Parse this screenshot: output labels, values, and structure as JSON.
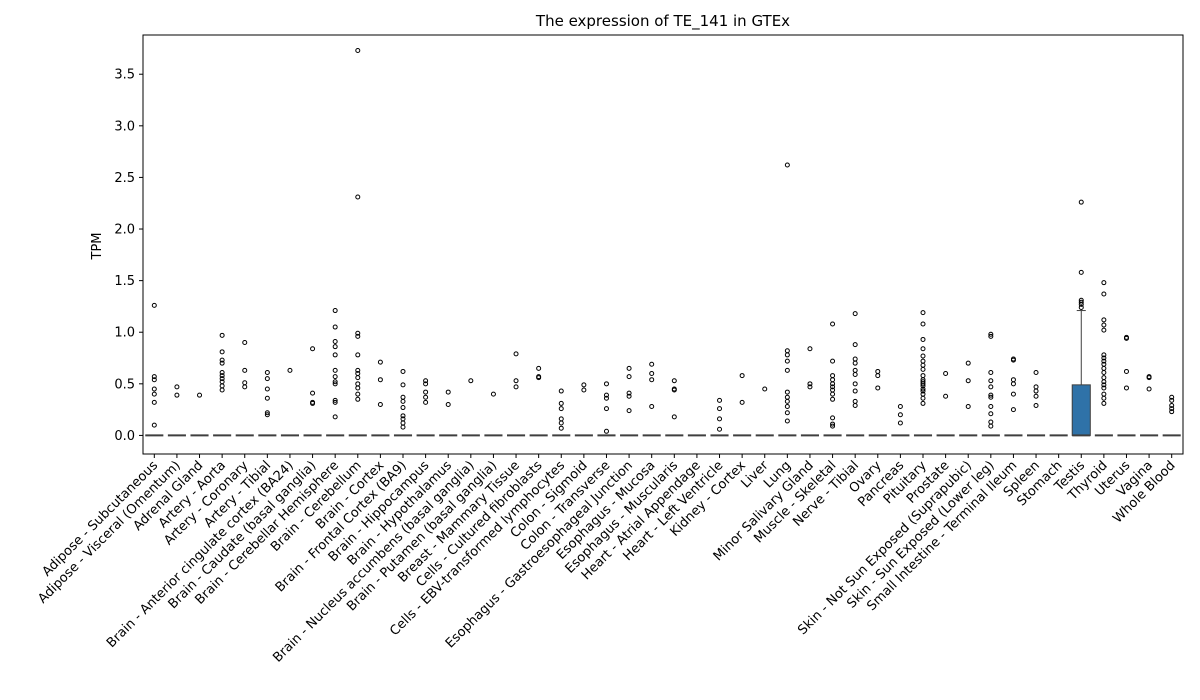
{
  "chart_data": {
    "type": "box",
    "title": "The expression of TE_141 in GTEx",
    "xlabel": "",
    "ylabel": "TPM",
    "ylim": [
      -0.18,
      3.88
    ],
    "yticks": [
      "0.0",
      "0.5",
      "1.0",
      "1.5",
      "2.0",
      "2.5",
      "3.0",
      "3.5"
    ],
    "grid": false,
    "box_color": "#2f72a8",
    "categories": [
      "Adipose - Subcutaneous",
      "Adipose - Visceral (Omentum)",
      "Adrenal Gland",
      "Artery - Aorta",
      "Artery - Coronary",
      "Artery - Tibial",
      "Brain - Anterior cingulate cortex (BA24)",
      "Brain - Caudate (basal ganglia)",
      "Brain - Cerebellar Hemisphere",
      "Brain - Cerebellum",
      "Brain - Cortex",
      "Brain - Frontal Cortex (BA9)",
      "Brain - Hippocampus",
      "Brain - Hypothalamus",
      "Brain - Nucleus accumbens (basal ganglia)",
      "Brain - Putamen (basal ganglia)",
      "Breast - Mammary Tissue",
      "Cells - Cultured fibroblasts",
      "Cells - EBV-transformed lymphocytes",
      "Colon - Sigmoid",
      "Colon - Transverse",
      "Esophagus - Gastroesophageal Junction",
      "Esophagus - Mucosa",
      "Esophagus - Muscularis",
      "Heart - Atrial Appendage",
      "Heart - Left Ventricle",
      "Kidney - Cortex",
      "Liver",
      "Lung",
      "Minor Salivary Gland",
      "Muscle - Skeletal",
      "Nerve - Tibial",
      "Ovary",
      "Pancreas",
      "Pituitary",
      "Prostate",
      "Skin - Not Sun Exposed (Suprapubic)",
      "Skin - Sun Exposed (Lower leg)",
      "Small Intestine - Terminal Ileum",
      "Spleen",
      "Stomach",
      "Testis",
      "Thyroid",
      "Uterus",
      "Vagina",
      "Whole Blood"
    ],
    "boxes": [
      {
        "q1": 0,
        "median": 0,
        "q3": 0,
        "whisker_low": 0,
        "whisker_high": 0,
        "outliers": [
          1.26,
          0.57,
          0.54,
          0.45,
          0.4,
          0.32,
          0.1
        ]
      },
      {
        "q1": 0,
        "median": 0,
        "q3": 0,
        "whisker_low": 0,
        "whisker_high": 0,
        "outliers": [
          0.47,
          0.39
        ]
      },
      {
        "q1": 0,
        "median": 0,
        "q3": 0,
        "whisker_low": 0,
        "whisker_high": 0,
        "outliers": [
          0.39
        ]
      },
      {
        "q1": 0,
        "median": 0,
        "q3": 0,
        "whisker_low": 0,
        "whisker_high": 0,
        "outliers": [
          0.97,
          0.81,
          0.73,
          0.7,
          0.61,
          0.58,
          0.55,
          0.52,
          0.48,
          0.44
        ]
      },
      {
        "q1": 0,
        "median": 0,
        "q3": 0,
        "whisker_low": 0,
        "whisker_high": 0,
        "outliers": [
          0.9,
          0.63,
          0.51,
          0.47
        ]
      },
      {
        "q1": 0,
        "median": 0,
        "q3": 0,
        "whisker_low": 0,
        "whisker_high": 0,
        "outliers": [
          0.61,
          0.55,
          0.45,
          0.36,
          0.22,
          0.2
        ]
      },
      {
        "q1": 0,
        "median": 0,
        "q3": 0,
        "whisker_low": 0,
        "whisker_high": 0,
        "outliers": [
          0.63
        ]
      },
      {
        "q1": 0,
        "median": 0,
        "q3": 0,
        "whisker_low": 0,
        "whisker_high": 0,
        "outliers": [
          0.84,
          0.41,
          0.32,
          0.31
        ]
      },
      {
        "q1": 0,
        "median": 0,
        "q3": 0,
        "whisker_low": 0,
        "whisker_high": 0,
        "outliers": [
          1.21,
          1.05,
          0.91,
          0.86,
          0.78,
          0.63,
          0.57,
          0.52,
          0.5,
          0.34,
          0.32,
          0.18
        ]
      },
      {
        "q1": 0,
        "median": 0,
        "q3": 0,
        "whisker_low": 0,
        "whisker_high": 0,
        "outliers": [
          3.73,
          2.31,
          0.99,
          0.96,
          0.78,
          0.63,
          0.6,
          0.56,
          0.5,
          0.46,
          0.4,
          0.35
        ]
      },
      {
        "q1": 0,
        "median": 0,
        "q3": 0,
        "whisker_low": 0,
        "whisker_high": 0,
        "outliers": [
          0.71,
          0.54,
          0.3
        ]
      },
      {
        "q1": 0,
        "median": 0,
        "q3": 0,
        "whisker_low": 0,
        "whisker_high": 0,
        "outliers": [
          0.62,
          0.49,
          0.37,
          0.33,
          0.27,
          0.19,
          0.16,
          0.12,
          0.08
        ]
      },
      {
        "q1": 0,
        "median": 0,
        "q3": 0,
        "whisker_low": 0,
        "whisker_high": 0,
        "outliers": [
          0.53,
          0.5,
          0.42,
          0.37,
          0.32
        ]
      },
      {
        "q1": 0,
        "median": 0,
        "q3": 0,
        "whisker_low": 0,
        "whisker_high": 0,
        "outliers": [
          0.42,
          0.3
        ]
      },
      {
        "q1": 0,
        "median": 0,
        "q3": 0,
        "whisker_low": 0,
        "whisker_high": 0,
        "outliers": [
          0.53
        ]
      },
      {
        "q1": 0,
        "median": 0,
        "q3": 0,
        "whisker_low": 0,
        "whisker_high": 0,
        "outliers": [
          0.4
        ]
      },
      {
        "q1": 0,
        "median": 0,
        "q3": 0,
        "whisker_low": 0,
        "whisker_high": 0,
        "outliers": [
          0.79,
          0.53,
          0.47
        ]
      },
      {
        "q1": 0,
        "median": 0,
        "q3": 0,
        "whisker_low": 0,
        "whisker_high": 0,
        "outliers": [
          0.65,
          0.57,
          0.56
        ]
      },
      {
        "q1": 0,
        "median": 0,
        "q3": 0,
        "whisker_low": 0,
        "whisker_high": 0,
        "outliers": [
          0.43,
          0.31,
          0.26,
          0.16,
          0.12,
          0.07
        ]
      },
      {
        "q1": 0,
        "median": 0,
        "q3": 0,
        "whisker_low": 0,
        "whisker_high": 0,
        "outliers": [
          0.49,
          0.44
        ]
      },
      {
        "q1": 0,
        "median": 0,
        "q3": 0,
        "whisker_low": 0,
        "whisker_high": 0,
        "outliers": [
          0.5,
          0.39,
          0.36,
          0.26,
          0.04
        ]
      },
      {
        "q1": 0,
        "median": 0,
        "q3": 0,
        "whisker_low": 0,
        "whisker_high": 0,
        "outliers": [
          0.65,
          0.57,
          0.41,
          0.38,
          0.24
        ]
      },
      {
        "q1": 0,
        "median": 0,
        "q3": 0,
        "whisker_low": 0,
        "whisker_high": 0,
        "outliers": [
          0.69,
          0.6,
          0.54,
          0.28
        ]
      },
      {
        "q1": 0,
        "median": 0,
        "q3": 0,
        "whisker_low": 0,
        "whisker_high": 0,
        "outliers": [
          0.53,
          0.45,
          0.44,
          0.18
        ]
      },
      {
        "q1": 0,
        "median": 0,
        "q3": 0,
        "whisker_low": 0,
        "whisker_high": 0,
        "outliers": []
      },
      {
        "q1": 0,
        "median": 0,
        "q3": 0,
        "whisker_low": 0,
        "whisker_high": 0,
        "outliers": [
          0.34,
          0.26,
          0.16,
          0.06
        ]
      },
      {
        "q1": 0,
        "median": 0,
        "q3": 0,
        "whisker_low": 0,
        "whisker_high": 0,
        "outliers": [
          0.58,
          0.32
        ]
      },
      {
        "q1": 0,
        "median": 0,
        "q3": 0,
        "whisker_low": 0,
        "whisker_high": 0,
        "outliers": [
          0.45
        ]
      },
      {
        "q1": 0,
        "median": 0,
        "q3": 0,
        "whisker_low": 0,
        "whisker_high": 0,
        "outliers": [
          2.62,
          0.82,
          0.78,
          0.72,
          0.63,
          0.42,
          0.37,
          0.33,
          0.28,
          0.22,
          0.14
        ]
      },
      {
        "q1": 0,
        "median": 0,
        "q3": 0,
        "whisker_low": 0,
        "whisker_high": 0,
        "outliers": [
          0.84,
          0.5,
          0.47
        ]
      },
      {
        "q1": 0,
        "median": 0,
        "q3": 0,
        "whisker_low": 0,
        "whisker_high": 0,
        "outliers": [
          1.08,
          0.72,
          0.58,
          0.54,
          0.5,
          0.47,
          0.44,
          0.4,
          0.35,
          0.17,
          0.11,
          0.09
        ]
      },
      {
        "q1": 0,
        "median": 0,
        "q3": 0,
        "whisker_low": 0,
        "whisker_high": 0,
        "outliers": [
          1.18,
          0.88,
          0.74,
          0.7,
          0.63,
          0.59,
          0.5,
          0.43,
          0.33,
          0.29
        ]
      },
      {
        "q1": 0,
        "median": 0,
        "q3": 0,
        "whisker_low": 0,
        "whisker_high": 0,
        "outliers": [
          0.62,
          0.58,
          0.46
        ]
      },
      {
        "q1": 0,
        "median": 0,
        "q3": 0,
        "whisker_low": 0,
        "whisker_high": 0,
        "outliers": [
          0.28,
          0.2,
          0.12
        ]
      },
      {
        "q1": 0,
        "median": 0,
        "q3": 0,
        "whisker_low": 0,
        "whisker_high": 0,
        "outliers": [
          1.19,
          1.08,
          0.93,
          0.84,
          0.77,
          0.72,
          0.68,
          0.64,
          0.58,
          0.54,
          0.52,
          0.5,
          0.48,
          0.45,
          0.43,
          0.4,
          0.36,
          0.31
        ]
      },
      {
        "q1": 0,
        "median": 0,
        "q3": 0,
        "whisker_low": 0,
        "whisker_high": 0,
        "outliers": [
          0.6,
          0.38
        ]
      },
      {
        "q1": 0,
        "median": 0,
        "q3": 0,
        "whisker_low": 0,
        "whisker_high": 0,
        "outliers": [
          0.7,
          0.53,
          0.28
        ]
      },
      {
        "q1": 0,
        "median": 0,
        "q3": 0,
        "whisker_low": 0,
        "whisker_high": 0,
        "outliers": [
          0.98,
          0.96,
          0.61,
          0.53,
          0.47,
          0.39,
          0.37,
          0.28,
          0.21,
          0.13,
          0.09
        ]
      },
      {
        "q1": 0,
        "median": 0,
        "q3": 0,
        "whisker_low": 0,
        "whisker_high": 0,
        "outliers": [
          0.74,
          0.73,
          0.54,
          0.5,
          0.4,
          0.25
        ]
      },
      {
        "q1": 0,
        "median": 0,
        "q3": 0,
        "whisker_low": 0,
        "whisker_high": 0,
        "outliers": [
          0.61,
          0.47,
          0.43,
          0.38,
          0.29
        ]
      },
      {
        "q1": 0,
        "median": 0,
        "q3": 0,
        "whisker_low": 0,
        "whisker_high": 0,
        "outliers": []
      },
      {
        "q1": 0,
        "median": 0.0,
        "q3": 0.49,
        "whisker_low": 0,
        "whisker_high": 1.21,
        "outliers": [
          2.26,
          1.58,
          1.31,
          1.29,
          1.27,
          1.24
        ]
      },
      {
        "q1": 0,
        "median": 0,
        "q3": 0,
        "whisker_low": 0,
        "whisker_high": 0,
        "outliers": [
          1.48,
          1.37,
          1.12,
          1.07,
          1.02,
          0.78,
          0.75,
          0.72,
          0.69,
          0.65,
          0.61,
          0.56,
          0.52,
          0.49,
          0.46,
          0.4,
          0.36,
          0.31
        ]
      },
      {
        "q1": 0,
        "median": 0,
        "q3": 0,
        "whisker_low": 0,
        "whisker_high": 0,
        "outliers": [
          0.95,
          0.94,
          0.62,
          0.46
        ]
      },
      {
        "q1": 0,
        "median": 0,
        "q3": 0,
        "whisker_low": 0,
        "whisker_high": 0,
        "outliers": [
          0.57,
          0.56,
          0.45
        ]
      },
      {
        "q1": 0,
        "median": 0,
        "q3": 0,
        "whisker_low": 0,
        "whisker_high": 0,
        "outliers": [
          0.37,
          0.34,
          0.29,
          0.26,
          0.23
        ]
      }
    ]
  }
}
